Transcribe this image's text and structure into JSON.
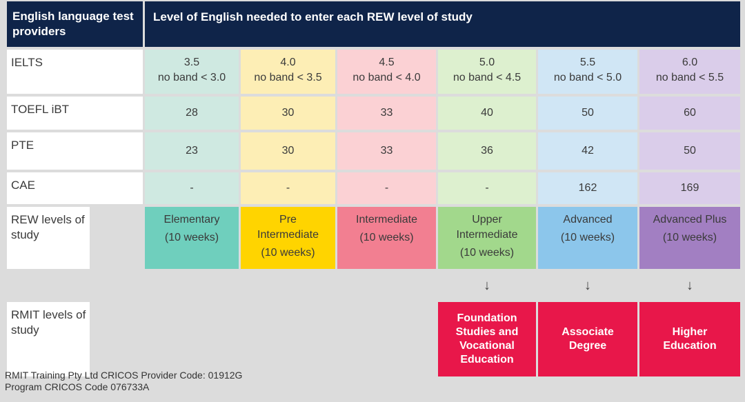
{
  "header": {
    "providers_label": "English language test providers",
    "level_label": "Level of English needed to enter each REW level of study"
  },
  "rows": {
    "ielts": {
      "label": "IELTS",
      "scores": [
        "3.5",
        "4.0",
        "4.5",
        "5.0",
        "5.5",
        "6.0"
      ],
      "bands": [
        "no band < 3.0",
        "no band < 3.5",
        "no band < 4.0",
        "no band < 4.5",
        "no band < 5.0",
        "no band < 5.5"
      ]
    },
    "toefl": {
      "label": "TOEFL iBT",
      "values": [
        "28",
        "30",
        "33",
        "40",
        "50",
        "60"
      ]
    },
    "pte": {
      "label": "PTE",
      "values": [
        "23",
        "30",
        "33",
        "36",
        "42",
        "50"
      ]
    },
    "cae": {
      "label": "CAE",
      "values": [
        "-",
        "-",
        "-",
        "-",
        "162",
        "169"
      ]
    }
  },
  "rew": {
    "label": "REW levels of study",
    "levels": [
      {
        "name": "Elementary",
        "duration": "(10 weeks)"
      },
      {
        "name": "Pre Intermediate",
        "duration": "(10 weeks)"
      },
      {
        "name": "Intermediate",
        "duration": "(10 weeks)"
      },
      {
        "name": "Upper Intermediate",
        "duration": "(10 weeks)"
      },
      {
        "name": "Advanced",
        "duration": "(10 weeks)"
      },
      {
        "name": "Advanced Plus",
        "duration": "(10 weeks)"
      }
    ],
    "colors": [
      "#6fcfbd",
      "#ffd400",
      "#f27f91",
      "#a2d88c",
      "#8cc6eb",
      "#a27fc2"
    ]
  },
  "arrow_glyph": "↓",
  "rmit": {
    "label": "RMIT levels of study",
    "levels": [
      "Foundation Studies and Vocational Education",
      "Associate Degree",
      "Higher Education"
    ],
    "color": "#e8174a"
  },
  "footer": {
    "line1": "RMIT Training Pty Ltd CRICOS Provider Code: 01912G",
    "line2": "Program CRICOS Code 076733A"
  }
}
